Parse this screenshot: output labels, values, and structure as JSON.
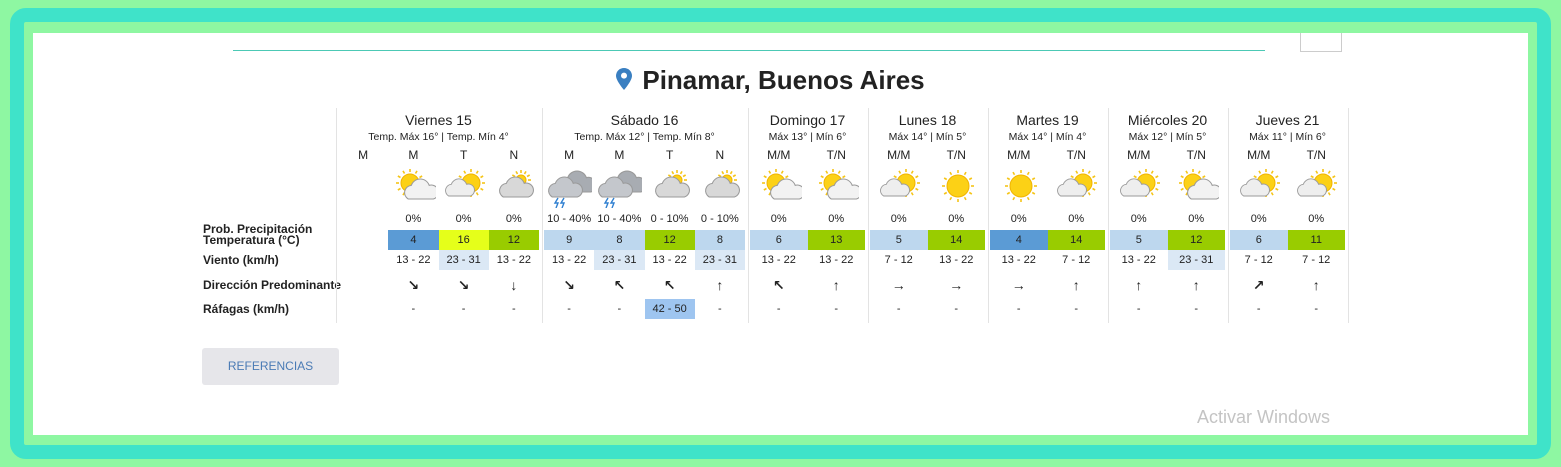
{
  "header": {
    "title": "Pinamar, Buenos Aires"
  },
  "row_labels": [
    "Prob. Precipitación",
    "Temperatura (°C)",
    "Viento (km/h)",
    "Dirección Predominante",
    "Ráfagas (km/h)"
  ],
  "days": [
    {
      "name": "Viernes 15",
      "temps": "Temp. Máx 16° | Temp. Mín 4°",
      "periods": [
        {
          "label": "M"
        },
        {
          "label": "M",
          "icon": "sun-cloud",
          "prob": "0%",
          "temp": 4,
          "temp_color": "#5b9bd5",
          "wind": "13 - 22",
          "direction": "↘",
          "gust": "-"
        },
        {
          "label": "T",
          "icon": "cloud-sun",
          "prob": "0%",
          "temp": 16,
          "temp_color": "#e5ff1a",
          "wind": "23 - 31",
          "wind_color": "#dbe8f5",
          "direction": "↘",
          "gust": "-"
        },
        {
          "label": "N",
          "icon": "cloud",
          "prob": "0%",
          "temp": 12,
          "temp_color": "#99cc00",
          "wind": "13 - 22",
          "direction": "↓",
          "gust": "-"
        }
      ]
    },
    {
      "name": "Sábado 16",
      "temps": "Temp. Máx 12° | Temp. Mín 8°",
      "periods": [
        {
          "label": "M",
          "icon": "storm",
          "prob": "10 - 40%",
          "temp": 9,
          "temp_color": "#bdd7ee",
          "wind": "13 - 22",
          "direction": "↘",
          "gust": "-"
        },
        {
          "label": "M",
          "icon": "storm",
          "prob": "10 - 40%",
          "temp": 8,
          "temp_color": "#bdd7ee",
          "wind": "23 - 31",
          "wind_color": "#dbe8f5",
          "direction": "↖",
          "gust": "-"
        },
        {
          "label": "T",
          "icon": "cloud",
          "prob": "0 - 10%",
          "temp": 12,
          "temp_color": "#99cc00",
          "wind": "13 - 22",
          "direction": "↖",
          "gust": "42 - 50",
          "gust_color": "#9ec5f0"
        },
        {
          "label": "N",
          "icon": "cloud",
          "prob": "0 - 10%",
          "temp": 8,
          "temp_color": "#bdd7ee",
          "wind": "23 - 31",
          "wind_color": "#dbe8f5",
          "direction": "↑",
          "gust": "-"
        }
      ]
    },
    {
      "name": "Domingo 17",
      "temps": "Máx 13° | Mín 6°",
      "periods": [
        {
          "label": "M/M",
          "icon": "sun-cloud",
          "prob": "0%",
          "temp": 6,
          "temp_color": "#bdd7ee",
          "wind": "13 - 22",
          "direction": "↖",
          "gust": "-"
        },
        {
          "label": "T/N",
          "icon": "sun-cloud",
          "prob": "0%",
          "temp": 13,
          "temp_color": "#99cc00",
          "wind": "13 - 22",
          "direction": "↑",
          "gust": "-"
        }
      ]
    },
    {
      "name": "Lunes 18",
      "temps": "Máx 14° | Mín 5°",
      "periods": [
        {
          "label": "M/M",
          "icon": "cloud-sun",
          "prob": "0%",
          "temp": 5,
          "temp_color": "#bdd7ee",
          "wind": "7 - 12",
          "direction": "→",
          "gust": "-"
        },
        {
          "label": "T/N",
          "icon": "sun",
          "prob": "0%",
          "temp": 14,
          "temp_color": "#99cc00",
          "wind": "13 - 22",
          "direction": "→",
          "gust": "-"
        }
      ]
    },
    {
      "name": "Martes 19",
      "temps": "Máx 14° | Mín 4°",
      "periods": [
        {
          "label": "M/M",
          "icon": "sun",
          "prob": "0%",
          "temp": 4,
          "temp_color": "#5b9bd5",
          "wind": "13 - 22",
          "direction": "→",
          "gust": "-"
        },
        {
          "label": "T/N",
          "icon": "cloud-sun",
          "prob": "0%",
          "temp": 14,
          "temp_color": "#99cc00",
          "wind": "7 - 12",
          "direction": "↑",
          "gust": "-"
        }
      ]
    },
    {
      "name": "Miércoles 20",
      "temps": "Máx 12° | Mín 5°",
      "periods": [
        {
          "label": "M/M",
          "icon": "cloud-sun",
          "prob": "0%",
          "temp": 5,
          "temp_color": "#bdd7ee",
          "wind": "13 - 22",
          "direction": "↑",
          "gust": "-"
        },
        {
          "label": "T/N",
          "icon": "sun-cloud",
          "prob": "0%",
          "temp": 12,
          "temp_color": "#99cc00",
          "wind": "23 - 31",
          "wind_color": "#dbe8f5",
          "direction": "↑",
          "gust": "-"
        }
      ]
    },
    {
      "name": "Jueves 21",
      "temps": "Máx 11° | Mín 6°",
      "periods": [
        {
          "label": "M/M",
          "icon": "cloud-sun",
          "prob": "0%",
          "temp": 6,
          "temp_color": "#bdd7ee",
          "wind": "7 - 12",
          "direction": "↗",
          "gust": "-"
        },
        {
          "label": "T/N",
          "icon": "cloud-sun",
          "prob": "0%",
          "temp": 11,
          "temp_color": "#99cc00",
          "wind": "7 - 12",
          "direction": "↑",
          "gust": "-"
        }
      ]
    }
  ],
  "button": "REFERENCIAS",
  "watermark": "Activar Windows"
}
